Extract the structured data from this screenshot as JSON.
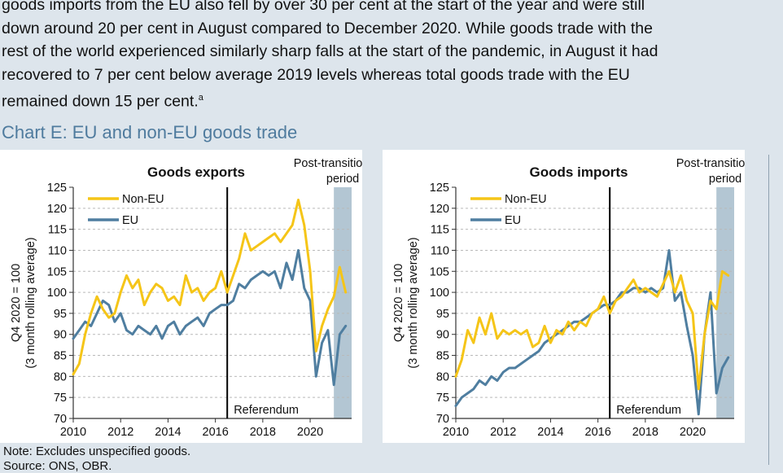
{
  "paragraph": {
    "lines": [
      "goods imports from the EU also fell by over 30 per cent at the start of the year and were still",
      "down around 20 per cent in August compared to December 2020. While goods trade with the",
      "rest of the world experienced similarly sharp falls at the start of the pandemic, in August it had",
      "recovered to 7 per cent below average 2019 levels whereas total goods trade with the EU",
      "remained down 15 per cent."
    ],
    "footnote_marker": "a"
  },
  "chart_title": "Chart E: EU and non-EU goods trade",
  "note": "Note: Excludes unspecified goods.",
  "source": "Source: ONS, OBR.",
  "colors": {
    "non_eu": "#f5c518",
    "eu": "#4f7ea0",
    "shade": "#b3c6d3",
    "background": "#dde5ec"
  },
  "chart_data": [
    {
      "type": "line",
      "title": "Goods exports",
      "ylabel": [
        "Q4 2020 = 100",
        "(3 month rolling average)"
      ],
      "ylim": [
        70,
        125
      ],
      "yticks": [
        "70",
        "75",
        "80",
        "85",
        "90",
        "95",
        "100",
        "105",
        "110",
        "115",
        "120",
        "125"
      ],
      "xlim": [
        2010,
        2021.75
      ],
      "xticks": [
        "2010",
        "2012",
        "2014",
        "2016",
        "2018",
        "2020"
      ],
      "legend": [
        "Non-EU",
        "EU"
      ],
      "legend_placement": "top-left",
      "vline_label": "Referendum",
      "vline_x": 2016.5,
      "shade_label": [
        "Post-transition",
        "period"
      ],
      "shade_range": [
        2021.0,
        2021.75
      ],
      "series": [
        {
          "name": "Non-EU",
          "x": [
            2010.0,
            2010.25,
            2010.5,
            2010.75,
            2011.0,
            2011.25,
            2011.5,
            2011.75,
            2012.0,
            2012.25,
            2012.5,
            2012.75,
            2013.0,
            2013.25,
            2013.5,
            2013.75,
            2014.0,
            2014.25,
            2014.5,
            2014.75,
            2015.0,
            2015.25,
            2015.5,
            2015.75,
            2016.0,
            2016.25,
            2016.5,
            2016.75,
            2017.0,
            2017.25,
            2017.5,
            2017.75,
            2018.0,
            2018.25,
            2018.5,
            2018.75,
            2019.0,
            2019.25,
            2019.5,
            2019.75,
            2020.0,
            2020.25,
            2020.5,
            2020.75,
            2021.0,
            2021.25,
            2021.5
          ],
          "values": [
            80.5,
            83,
            90,
            95,
            99,
            96,
            94,
            95,
            100,
            104,
            101,
            103,
            97,
            100,
            102,
            101,
            98,
            99,
            97,
            104,
            100,
            101,
            98,
            100,
            101,
            105,
            100,
            104,
            108,
            114,
            110,
            111,
            112,
            113,
            114,
            112,
            114,
            116,
            122,
            116,
            105,
            86,
            92,
            96,
            99,
            106,
            100
          ]
        },
        {
          "name": "EU",
          "x": [
            2010.0,
            2010.25,
            2010.5,
            2010.75,
            2011.0,
            2011.25,
            2011.5,
            2011.75,
            2012.0,
            2012.25,
            2012.5,
            2012.75,
            2013.0,
            2013.25,
            2013.5,
            2013.75,
            2014.0,
            2014.25,
            2014.5,
            2014.75,
            2015.0,
            2015.25,
            2015.5,
            2015.75,
            2016.0,
            2016.25,
            2016.5,
            2016.75,
            2017.0,
            2017.25,
            2017.5,
            2017.75,
            2018.0,
            2018.25,
            2018.5,
            2018.75,
            2019.0,
            2019.25,
            2019.5,
            2019.75,
            2020.0,
            2020.25,
            2020.5,
            2020.75,
            2021.0,
            2021.25,
            2021.5
          ],
          "values": [
            89,
            91,
            93,
            92,
            95,
            98,
            97,
            93,
            95,
            91,
            90,
            92,
            91,
            90,
            92,
            89,
            92,
            93,
            90,
            92,
            93,
            94,
            92,
            95,
            96,
            97,
            97,
            98,
            102,
            101,
            103,
            104,
            105,
            104,
            105,
            101,
            107,
            103,
            110,
            101,
            98,
            80,
            88,
            91,
            78,
            90,
            92
          ]
        }
      ]
    },
    {
      "type": "line",
      "title": "Goods imports",
      "ylabel": [
        "Q4 2020 = 100",
        "(3 month rolling average)"
      ],
      "ylim": [
        70,
        125
      ],
      "yticks": [
        "70",
        "75",
        "80",
        "85",
        "90",
        "95",
        "100",
        "105",
        "110",
        "115",
        "120",
        "125"
      ],
      "xlim": [
        2010,
        2021.75
      ],
      "xticks": [
        "2010",
        "2012",
        "2014",
        "2016",
        "2018",
        "2020"
      ],
      "legend": [
        "Non-EU",
        "EU"
      ],
      "legend_placement": "top-left",
      "vline_label": "Referendum",
      "vline_x": 2016.5,
      "shade_label": [
        "Post-transition",
        "period"
      ],
      "shade_range": [
        2021.0,
        2021.75
      ],
      "series": [
        {
          "name": "Non-EU",
          "x": [
            2010.0,
            2010.25,
            2010.5,
            2010.75,
            2011.0,
            2011.25,
            2011.5,
            2011.75,
            2012.0,
            2012.25,
            2012.5,
            2012.75,
            2013.0,
            2013.25,
            2013.5,
            2013.75,
            2014.0,
            2014.25,
            2014.5,
            2014.75,
            2015.0,
            2015.25,
            2015.5,
            2015.75,
            2016.0,
            2016.25,
            2016.5,
            2016.75,
            2017.0,
            2017.25,
            2017.5,
            2017.75,
            2018.0,
            2018.25,
            2018.5,
            2018.75,
            2019.0,
            2019.25,
            2019.5,
            2019.75,
            2020.0,
            2020.25,
            2020.5,
            2020.75,
            2021.0,
            2021.25,
            2021.5
          ],
          "values": [
            80,
            84,
            91,
            88,
            94,
            90,
            95,
            89,
            91,
            90,
            91,
            90,
            91,
            87,
            88,
            92,
            88,
            91,
            90,
            93,
            91,
            93,
            92,
            95,
            96,
            99,
            95,
            98,
            99,
            101,
            103,
            100,
            101,
            100,
            99,
            102,
            105,
            100,
            104,
            98,
            95,
            77,
            90,
            98,
            96,
            105,
            104
          ]
        },
        {
          "name": "EU",
          "x": [
            2010.0,
            2010.25,
            2010.5,
            2010.75,
            2011.0,
            2011.25,
            2011.5,
            2011.75,
            2012.0,
            2012.25,
            2012.5,
            2012.75,
            2013.0,
            2013.25,
            2013.5,
            2013.75,
            2014.0,
            2014.25,
            2014.5,
            2014.75,
            2015.0,
            2015.25,
            2015.5,
            2015.75,
            2016.0,
            2016.25,
            2016.5,
            2016.75,
            2017.0,
            2017.25,
            2017.5,
            2017.75,
            2018.0,
            2018.25,
            2018.5,
            2018.75,
            2019.0,
            2019.25,
            2019.5,
            2019.75,
            2020.0,
            2020.25,
            2020.5,
            2020.75,
            2021.0,
            2021.25,
            2021.5
          ],
          "values": [
            73,
            75,
            76,
            77,
            79,
            78,
            80,
            79,
            81,
            82,
            82,
            83,
            84,
            85,
            86,
            88,
            89,
            90,
            91,
            92,
            93,
            93,
            94,
            95,
            96,
            97,
            97,
            98,
            100,
            100,
            101,
            101,
            100,
            101,
            100,
            101,
            110,
            98,
            100,
            92,
            85,
            71,
            90,
            100,
            76,
            82,
            84.5
          ]
        }
      ]
    }
  ]
}
